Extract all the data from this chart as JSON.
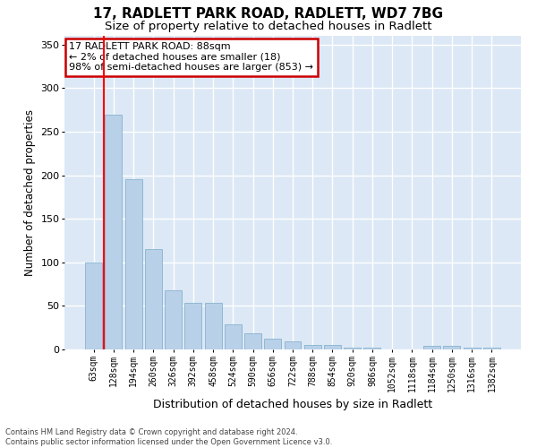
{
  "title": "17, RADLETT PARK ROAD, RADLETT, WD7 7BG",
  "subtitle": "Size of property relative to detached houses in Radlett",
  "xlabel": "Distribution of detached houses by size in Radlett",
  "ylabel": "Number of detached properties",
  "categories": [
    "63sqm",
    "128sqm",
    "194sqm",
    "260sqm",
    "326sqm",
    "392sqm",
    "458sqm",
    "524sqm",
    "590sqm",
    "656sqm",
    "722sqm",
    "788sqm",
    "854sqm",
    "920sqm",
    "986sqm",
    "1052sqm",
    "1118sqm",
    "1184sqm",
    "1250sqm",
    "1316sqm",
    "1382sqm"
  ],
  "values": [
    100,
    270,
    195,
    115,
    68,
    54,
    54,
    29,
    19,
    12,
    9,
    5,
    5,
    2,
    2,
    0,
    0,
    4,
    4,
    2,
    2
  ],
  "bar_color": "#b8d0e8",
  "bar_edge_color": "#7aaaca",
  "annotation_text": "17 RADLETT PARK ROAD: 88sqm\n← 2% of detached houses are smaller (18)\n98% of semi-detached houses are larger (853) →",
  "annotation_box_facecolor": "#ffffff",
  "annotation_box_edgecolor": "#cc0000",
  "ylim": [
    0,
    360
  ],
  "yticks": [
    0,
    50,
    100,
    150,
    200,
    250,
    300,
    350
  ],
  "plot_bg_color": "#dce8f5",
  "fig_bg_color": "#ffffff",
  "grid_color": "#ffffff",
  "red_line_x": 0.5,
  "title_fontsize": 11,
  "subtitle_fontsize": 9.5,
  "tick_fontsize": 7,
  "ylabel_fontsize": 8.5,
  "xlabel_fontsize": 9,
  "footnote": "Contains HM Land Registry data © Crown copyright and database right 2024.\nContains public sector information licensed under the Open Government Licence v3.0."
}
